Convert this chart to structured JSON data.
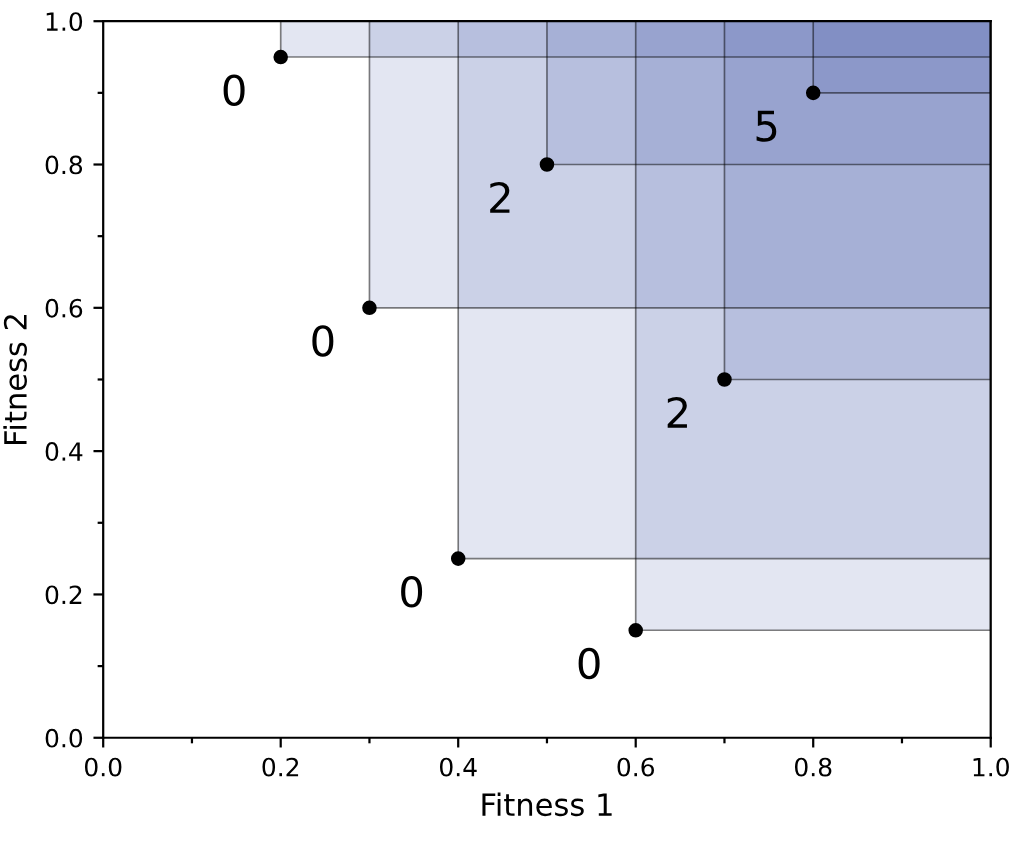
{
  "chart_data": {
    "type": "scatter",
    "xlabel": "Fitness 1",
    "ylabel": "Fitness 2",
    "xlim": [
      0,
      1
    ],
    "ylim": [
      0,
      1
    ],
    "xticks": [
      {
        "value": 0,
        "label": "0.0"
      },
      {
        "value": 0.1,
        "label": null
      },
      {
        "value": 0.2,
        "label": "0.2"
      },
      {
        "value": 0.3,
        "label": null
      },
      {
        "value": 0.4,
        "label": "0.4"
      },
      {
        "value": 0.5,
        "label": null
      },
      {
        "value": 0.6,
        "label": "0.6"
      },
      {
        "value": 0.7,
        "label": null
      },
      {
        "value": 0.8,
        "label": "0.8"
      },
      {
        "value": 0.9,
        "label": null
      },
      {
        "value": 1,
        "label": "1.0"
      }
    ],
    "yticks": [
      {
        "value": 0,
        "label": "0.0"
      },
      {
        "value": 0.1,
        "label": null
      },
      {
        "value": 0.2,
        "label": "0.2"
      },
      {
        "value": 0.3,
        "label": null
      },
      {
        "value": 0.4,
        "label": "0.4"
      },
      {
        "value": 0.5,
        "label": null
      },
      {
        "value": 0.6,
        "label": "0.6"
      },
      {
        "value": 0.7,
        "label": null
      },
      {
        "value": 0.8,
        "label": "0.8"
      },
      {
        "value": 0.9,
        "label": null
      },
      {
        "value": 1,
        "label": "1.0"
      }
    ],
    "grid": false,
    "legend": false,
    "marker": "circle",
    "series": [
      {
        "color": "#000000",
        "x": [
          0.2,
          0.3,
          0.4,
          0.6,
          0.5,
          0.7,
          0.8
        ],
        "values": [
          0.95,
          0.6,
          0.25,
          0.15,
          0.8,
          0.5,
          0.9
        ]
      }
    ],
    "annotations": [
      {
        "text": "0",
        "x": 0.2,
        "y": 0.95
      },
      {
        "text": "0",
        "x": 0.3,
        "y": 0.6
      },
      {
        "text": "0",
        "x": 0.4,
        "y": 0.25
      },
      {
        "text": "0",
        "x": 0.6,
        "y": 0.15
      },
      {
        "text": "2",
        "x": 0.5,
        "y": 0.8
      },
      {
        "text": "2",
        "x": 0.7,
        "y": 0.5
      },
      {
        "text": "5",
        "x": 0.8,
        "y": 0.9
      }
    ]
  }
}
